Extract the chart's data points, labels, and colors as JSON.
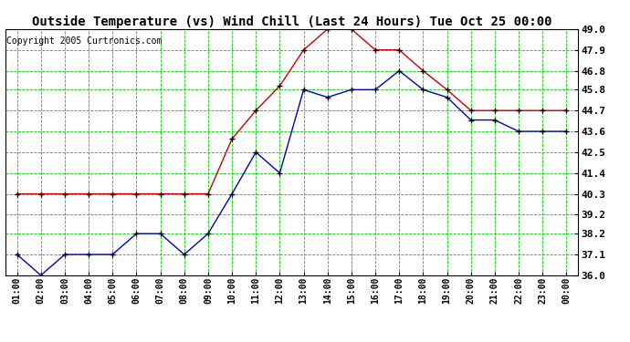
{
  "title": "Outside Temperature (vs) Wind Chill (Last 24 Hours) Tue Oct 25 00:00",
  "copyright": "Copyright 2005 Curtronics.com",
  "x_labels": [
    "01:00",
    "02:00",
    "03:00",
    "04:00",
    "05:00",
    "06:00",
    "07:00",
    "08:00",
    "09:00",
    "10:00",
    "11:00",
    "12:00",
    "13:00",
    "14:00",
    "15:00",
    "16:00",
    "17:00",
    "18:00",
    "19:00",
    "20:00",
    "21:00",
    "22:00",
    "23:00",
    "00:00"
  ],
  "outside_temp": [
    37.1,
    36.0,
    37.1,
    37.1,
    37.1,
    38.2,
    38.2,
    37.1,
    38.2,
    40.3,
    42.5,
    41.4,
    45.8,
    45.4,
    45.8,
    45.8,
    46.8,
    45.8,
    45.4,
    44.2,
    44.2,
    43.6,
    43.6,
    43.6
  ],
  "wind_chill": [
    40.3,
    40.3,
    40.3,
    40.3,
    40.3,
    40.3,
    40.3,
    40.3,
    40.3,
    43.2,
    44.7,
    46.0,
    47.9,
    49.0,
    49.0,
    47.9,
    47.9,
    46.8,
    45.8,
    44.7,
    44.7,
    44.7,
    44.7,
    44.7
  ],
  "outside_color": "#0000cc",
  "windchill_color": "#cc0000",
  "bg_color": "#ffffff",
  "plot_bg_color": "#ffffff",
  "grid_color": "#00cc00",
  "ylim": [
    36.0,
    49.0
  ],
  "yticks": [
    36.0,
    37.1,
    38.2,
    39.2,
    40.3,
    41.4,
    42.5,
    43.6,
    44.7,
    45.8,
    46.8,
    47.9,
    49.0
  ],
  "title_fontsize": 10,
  "copyright_fontsize": 7,
  "tick_fontsize": 8,
  "xlabel_fontsize": 7
}
